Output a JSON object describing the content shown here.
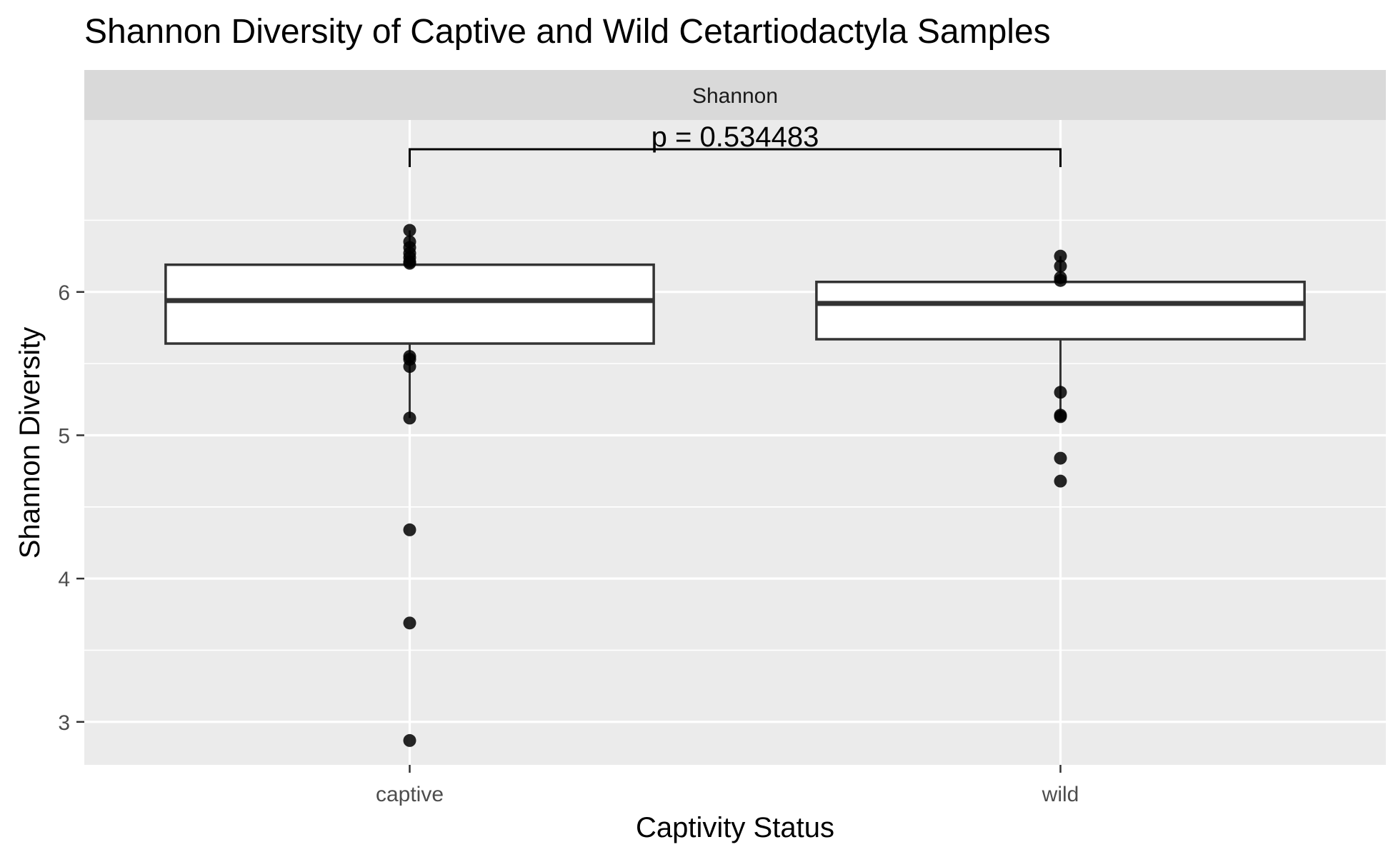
{
  "chart_data": {
    "type": "boxplot",
    "title": "Shannon Diversity of Captive and Wild Cetartiodactyla Samples",
    "facet_label": "Shannon",
    "xlabel": "Captivity Status",
    "ylabel": "Shannon Diversity",
    "categories": [
      "captive",
      "wild"
    ],
    "ylim": [
      2.7,
      7.2
    ],
    "yticks": [
      3,
      4,
      5,
      6
    ],
    "grid": true,
    "boxes": [
      {
        "category": "captive",
        "q1": 5.64,
        "median": 5.94,
        "q3": 6.19,
        "whisker_low": 5.12,
        "whisker_high": 6.43,
        "points": [
          6.43,
          6.35,
          6.31,
          6.27,
          6.24,
          6.21,
          6.2,
          5.55,
          5.53,
          5.48,
          5.12,
          4.34,
          3.69,
          2.87
        ]
      },
      {
        "category": "wild",
        "q1": 5.67,
        "median": 5.92,
        "q3": 6.07,
        "whisker_low": 5.13,
        "whisker_high": 6.25,
        "points": [
          6.25,
          6.18,
          6.1,
          6.08,
          5.3,
          5.14,
          5.13,
          4.84,
          4.68
        ]
      }
    ],
    "annotation": {
      "text": "p = 0.534483",
      "from": "captive",
      "to": "wild"
    },
    "colors": {
      "panel_background": "#ebebeb",
      "strip_background": "#d9d9d9",
      "gridline": "#ffffff",
      "box_outline": "#333333",
      "box_fill": "#ffffff",
      "point": "#000000"
    }
  }
}
